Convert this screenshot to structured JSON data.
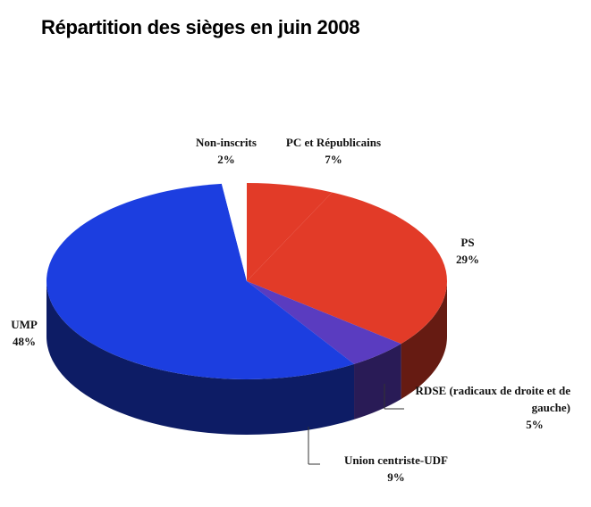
{
  "chart_data": {
    "type": "pie",
    "title": "Répartition des sièges en juin 2008",
    "categories": [
      "Non-inscrits",
      "PC et Républicains",
      "PS",
      "RDSE (radicaux de droite et de gauche)",
      "Union centriste-UDF",
      "UMP"
    ],
    "values": [
      2,
      7,
      29,
      5,
      9,
      48
    ],
    "value_labels": [
      "2%",
      "7%",
      "29%",
      "5%",
      "9%",
      "48%"
    ],
    "colors": [
      "#ffffff",
      "#e23b28",
      "#e23b28",
      "#5a3cc0",
      "#1c3ee0",
      "#1c3ee0"
    ]
  }
}
